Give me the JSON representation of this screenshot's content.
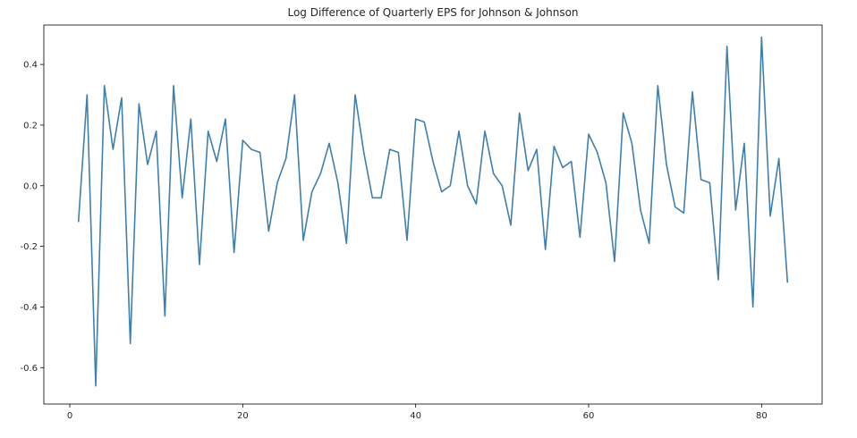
{
  "chart_data": {
    "type": "line",
    "title": "Log Difference of Quarterly EPS for Johnson & Johnson",
    "xlabel": "",
    "ylabel": "",
    "xlim": [
      -3,
      87
    ],
    "ylim": [
      -0.72,
      0.53
    ],
    "x_ticks": [
      0,
      20,
      40,
      60,
      80
    ],
    "y_ticks": [
      -0.6,
      -0.4,
      -0.2,
      0.0,
      0.2,
      0.4
    ],
    "x_tick_labels": [
      "0",
      "20",
      "40",
      "60",
      "80"
    ],
    "y_tick_labels": [
      "-0.6",
      "-0.4",
      "-0.2",
      "0.0",
      "0.2",
      "0.4"
    ],
    "grid": false,
    "legend": "none",
    "series": [
      {
        "color": "#3e7fae",
        "x": [
          1,
          2,
          3,
          4,
          5,
          6,
          7,
          8,
          9,
          10,
          11,
          12,
          13,
          14,
          15,
          16,
          17,
          18,
          19,
          20,
          21,
          22,
          23,
          24,
          25,
          26,
          27,
          28,
          29,
          30,
          31,
          32,
          33,
          34,
          35,
          36,
          37,
          38,
          39,
          40,
          41,
          42,
          43,
          44,
          45,
          46,
          47,
          48,
          49,
          50,
          51,
          52,
          53,
          54,
          55,
          56,
          57,
          58,
          59,
          60,
          61,
          62,
          63,
          64,
          65,
          66,
          67,
          68,
          69,
          70,
          71,
          72,
          73,
          74,
          75,
          76,
          77,
          78,
          79,
          80,
          81,
          82,
          83
        ],
        "y": [
          -0.12,
          0.3,
          -0.66,
          0.33,
          0.12,
          0.29,
          -0.52,
          0.27,
          0.07,
          0.18,
          -0.43,
          0.33,
          -0.04,
          0.22,
          -0.26,
          0.18,
          0.08,
          0.22,
          -0.22,
          0.15,
          0.12,
          0.11,
          -0.15,
          0.01,
          0.09,
          0.3,
          -0.18,
          -0.02,
          0.04,
          0.14,
          0.01,
          -0.19,
          0.3,
          0.11,
          -0.04,
          -0.04,
          0.12,
          0.11,
          -0.18,
          0.22,
          0.21,
          0.08,
          -0.02,
          0.0,
          0.18,
          0.0,
          -0.06,
          0.18,
          0.04,
          0.0,
          -0.13,
          0.24,
          0.05,
          0.12,
          -0.21,
          0.13,
          0.06,
          0.08,
          -0.17,
          0.17,
          0.11,
          0.01,
          -0.25,
          0.24,
          0.14,
          -0.08,
          -0.19,
          0.33,
          0.07,
          -0.07,
          -0.09,
          0.31,
          0.02,
          0.01,
          -0.31,
          0.46,
          -0.08,
          0.14,
          -0.4,
          0.49,
          -0.1,
          0.09,
          -0.32
        ]
      }
    ]
  }
}
